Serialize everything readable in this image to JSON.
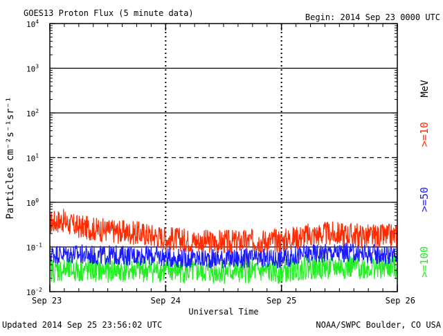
{
  "chart_data": {
    "type": "line",
    "title": "GOES13 Proton Flux (5 minute data)",
    "begin_text": "Begin: 2014 Sep 23 0000 UTC",
    "xlabel": "Universal Time",
    "ylabel": "Particles cm⁻²s⁻¹sr⁻¹",
    "unit_label": "MeV",
    "y_scale": "log",
    "ylim": [
      0.01,
      10000
    ],
    "x_range_days": [
      0,
      3
    ],
    "x_ticks": [
      "Sep 23",
      "Sep 24",
      "Sep 25",
      "Sep 26"
    ],
    "y_ticks": [
      {
        "base": "10",
        "exp": "4"
      },
      {
        "base": "10",
        "exp": "3"
      },
      {
        "base": "10",
        "exp": "2"
      },
      {
        "base": "10",
        "exp": "1"
      },
      {
        "base": "10",
        "exp": "0"
      },
      {
        "base": "10",
        "exp": "-1"
      },
      {
        "base": "10",
        "exp": "-2"
      }
    ],
    "threshold_lines": [
      {
        "value": 1000,
        "style": "solid"
      },
      {
        "value": 100,
        "style": "solid"
      },
      {
        "value": 10,
        "style": "dashed"
      },
      {
        "value": 1,
        "style": "solid"
      },
      {
        "value": 0.1,
        "style": "solid"
      }
    ],
    "series": [
      {
        "name": ">=10",
        "color": "#ff2a00",
        "x": [
          0,
          0.1,
          0.2,
          0.4,
          0.6,
          0.8,
          1.0,
          1.2,
          1.4,
          1.6,
          1.8,
          2.0,
          2.2,
          2.4,
          2.6,
          2.8,
          3.0
        ],
        "y": [
          0.35,
          0.4,
          0.3,
          0.25,
          0.22,
          0.2,
          0.16,
          0.14,
          0.13,
          0.13,
          0.14,
          0.14,
          0.18,
          0.2,
          0.19,
          0.17,
          0.18
        ]
      },
      {
        "name": ">=50",
        "color": "#1a1aff",
        "x": [
          0,
          0.2,
          0.4,
          0.6,
          0.8,
          1.0,
          1.2,
          1.4,
          1.6,
          1.8,
          2.0,
          2.2,
          2.4,
          2.6,
          2.8,
          3.0
        ],
        "y": [
          0.07,
          0.07,
          0.065,
          0.065,
          0.065,
          0.06,
          0.055,
          0.055,
          0.055,
          0.055,
          0.055,
          0.07,
          0.075,
          0.075,
          0.07,
          0.065
        ]
      },
      {
        "name": ">=100",
        "color": "#22ee22",
        "x": [
          0,
          0.2,
          0.4,
          0.6,
          0.8,
          1.0,
          1.2,
          1.4,
          1.6,
          1.8,
          2.0,
          2.2,
          2.4,
          2.6,
          2.8,
          3.0
        ],
        "y": [
          0.03,
          0.03,
          0.03,
          0.03,
          0.03,
          0.03,
          0.028,
          0.028,
          0.028,
          0.028,
          0.028,
          0.035,
          0.035,
          0.035,
          0.035,
          0.035
        ]
      }
    ]
  },
  "footer": {
    "updated": "Updated 2014 Sep 25 23:56:02 UTC",
    "credit": "NOAA/SWPC Boulder, CO USA"
  }
}
